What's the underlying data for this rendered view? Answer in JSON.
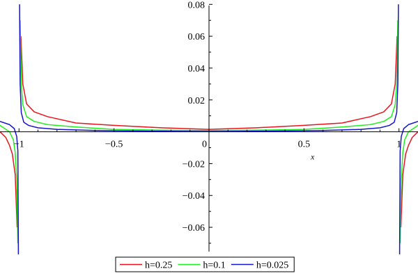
{
  "chart_data": {
    "type": "line",
    "xlabel": "x",
    "ylabel": "",
    "xlim": [
      -1.1,
      1.1
    ],
    "ylim": [
      -0.077,
      0.081
    ],
    "x_ticks": [
      {
        "value": -1,
        "label": "−1"
      },
      {
        "value": -0.5,
        "label": "−0.5"
      },
      {
        "value": 0,
        "label": "0"
      },
      {
        "value": 0.5,
        "label": "0.5"
      },
      {
        "value": 1,
        "label": "1"
      }
    ],
    "y_ticks": [
      {
        "value": 0.08,
        "label": "0.08"
      },
      {
        "value": 0.06,
        "label": "0.06"
      },
      {
        "value": 0.04,
        "label": "0.04"
      },
      {
        "value": 0.02,
        "label": "0.02"
      },
      {
        "value": -0.02,
        "label": "−0.02"
      },
      {
        "value": -0.04,
        "label": "−0.04"
      },
      {
        "value": -0.06,
        "label": "−0.06"
      }
    ],
    "grid": false,
    "legend_position": "bottom",
    "series": [
      {
        "name": "h=0.25",
        "color": "#e8141c",
        "x": [
          -1.1,
          -1.07,
          -1.05,
          -1.035,
          -1.02,
          -1.01,
          -0.99,
          -0.98,
          -0.96,
          -0.92,
          -0.85,
          -0.7,
          -0.5,
          -0.25,
          0,
          0.25,
          0.5,
          0.7,
          0.85,
          0.92,
          0.96,
          0.98,
          0.99,
          1.01,
          1.02,
          1.035,
          1.05,
          1.07,
          1.1
        ],
        "y": [
          0.0,
          -0.0035,
          -0.0085,
          -0.014,
          -0.027,
          -0.06,
          0.06,
          0.03,
          0.0175,
          0.0125,
          0.0095,
          0.0055,
          0.004,
          0.0025,
          0.0015,
          0.0025,
          0.004,
          0.0055,
          0.0095,
          0.0125,
          0.0175,
          0.03,
          0.06,
          -0.06,
          -0.027,
          -0.014,
          -0.0085,
          -0.0035,
          0.0
        ]
      },
      {
        "name": "h=0.1",
        "color": "#22ee22",
        "x": [
          -1.1,
          -1.05,
          -1.03,
          -1.02,
          -1.012,
          -1.006,
          -0.994,
          -0.988,
          -0.98,
          -0.96,
          -0.92,
          -0.85,
          -0.7,
          -0.5,
          -0.25,
          0,
          0.25,
          0.5,
          0.7,
          0.85,
          0.92,
          0.96,
          0.98,
          0.988,
          0.994,
          1.006,
          1.012,
          1.02,
          1.03,
          1.05,
          1.1
        ],
        "y": [
          0.004,
          0.0,
          -0.005,
          -0.013,
          -0.03,
          -0.07,
          0.07,
          0.03,
          0.017,
          0.0095,
          0.0065,
          0.0045,
          0.003,
          0.0015,
          0.001,
          0.0008,
          0.001,
          0.0015,
          0.003,
          0.0045,
          0.0065,
          0.0095,
          0.017,
          0.03,
          0.07,
          -0.07,
          -0.03,
          -0.013,
          -0.005,
          0.0,
          0.004
        ]
      },
      {
        "name": "h=0.025",
        "color": "#1414c8",
        "x": [
          -1.1,
          -1.05,
          -1.025,
          -1.012,
          -1.006,
          -1.003,
          -0.997,
          -0.994,
          -0.988,
          -0.975,
          -0.95,
          -0.9,
          -0.8,
          -0.6,
          -0.3,
          0,
          0.3,
          0.6,
          0.8,
          0.9,
          0.95,
          0.975,
          0.988,
          0.994,
          0.997,
          1.003,
          1.006,
          1.012,
          1.025,
          1.05,
          1.1
        ],
        "y": [
          0.0065,
          0.0045,
          0.002,
          -0.003,
          -0.012,
          -0.08,
          0.08,
          0.03,
          0.012,
          0.006,
          0.004,
          0.0025,
          0.0015,
          0.0008,
          0.0004,
          0.0002,
          0.0004,
          0.0008,
          0.0015,
          0.0025,
          0.004,
          0.006,
          0.012,
          0.03,
          0.08,
          -0.08,
          -0.012,
          -0.003,
          0.002,
          0.0045,
          0.0065
        ]
      }
    ]
  }
}
